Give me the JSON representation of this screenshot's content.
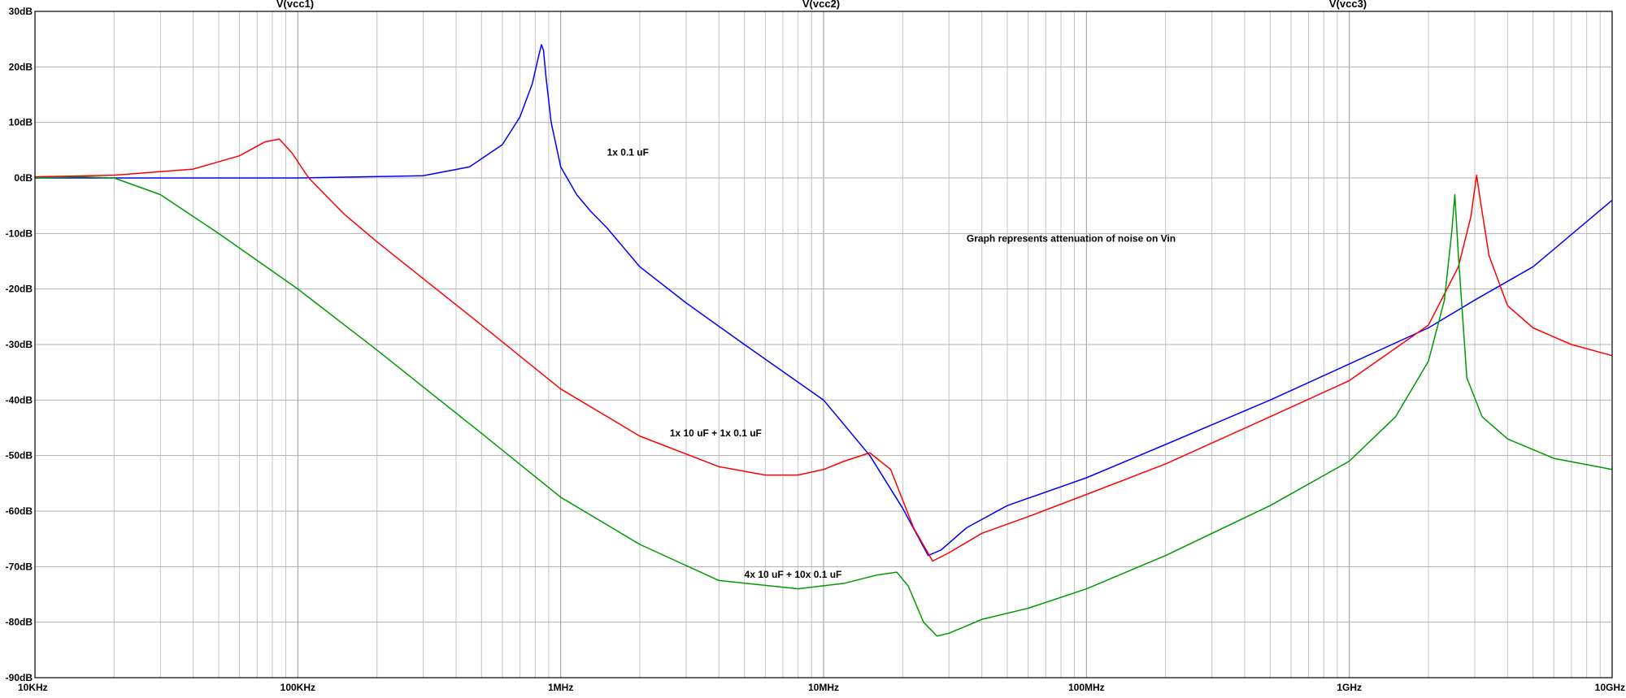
{
  "chart_data": {
    "type": "line",
    "title": "",
    "xlabel": "",
    "ylabel": "",
    "x_scale": "log",
    "xlim_hz": [
      10000,
      10000000000
    ],
    "ylim_db": [
      -90,
      30
    ],
    "grid": true,
    "trace_headers": [
      "V(vcc1)",
      "V(vcc2)",
      "V(vcc3)"
    ],
    "x_ticks": [
      {
        "value": 10000,
        "label": "10KHz"
      },
      {
        "value": 100000,
        "label": "100KHz"
      },
      {
        "value": 1000000,
        "label": "1MHz"
      },
      {
        "value": 10000000,
        "label": "10MHz"
      },
      {
        "value": 100000000,
        "label": "100MHz"
      },
      {
        "value": 1000000000,
        "label": "1GHz"
      },
      {
        "value": 10000000000,
        "label": "10GHz"
      }
    ],
    "y_ticks": [
      {
        "value": 30,
        "label": "30dB"
      },
      {
        "value": 20,
        "label": "20dB"
      },
      {
        "value": 10,
        "label": "10dB"
      },
      {
        "value": 0,
        "label": "0dB"
      },
      {
        "value": -10,
        "label": "-10dB"
      },
      {
        "value": -20,
        "label": "-20dB"
      },
      {
        "value": -30,
        "label": "-30dB"
      },
      {
        "value": -40,
        "label": "-40dB"
      },
      {
        "value": -50,
        "label": "-50dB"
      },
      {
        "value": -60,
        "label": "-60dB"
      },
      {
        "value": -70,
        "label": "-70dB"
      },
      {
        "value": -80,
        "label": "-80dB"
      },
      {
        "value": -90,
        "label": "-90dB"
      }
    ],
    "annotations": [
      {
        "text": "1x 0.1 uF",
        "x": 1500000,
        "y": 4,
        "color": "#000000"
      },
      {
        "text": "1x 10 uF + 1x 0.1 uF",
        "x": 2600000,
        "y": -46.5,
        "color": "#000000"
      },
      {
        "text": "4x 10 uF + 10x 0.1 uF",
        "x": 5000000,
        "y": -72,
        "color": "#000000"
      },
      {
        "text": "Graph represents attenuation of noise on Vin",
        "x": 35000000,
        "y": -11.5,
        "color": "#000000"
      }
    ],
    "series": [
      {
        "color": "#0000ff",
        "points": [
          [
            10000,
            0
          ],
          [
            100000,
            0
          ],
          [
            300000,
            0.4
          ],
          [
            450000,
            2
          ],
          [
            600000,
            6
          ],
          [
            700000,
            11
          ],
          [
            780000,
            17
          ],
          [
            820000,
            21.5
          ],
          [
            845000,
            24
          ],
          [
            860000,
            23
          ],
          [
            880000,
            18
          ],
          [
            920000,
            10
          ],
          [
            1000000,
            2
          ],
          [
            1150000,
            -3
          ],
          [
            1300000,
            -6
          ],
          [
            1500000,
            -9
          ],
          [
            2000000,
            -16
          ],
          [
            3000000,
            -22.5
          ],
          [
            5000000,
            -30
          ],
          [
            10000000,
            -40
          ],
          [
            15000000,
            -50
          ],
          [
            20000000,
            -59.5
          ],
          [
            25000000,
            -68
          ],
          [
            28000000,
            -67
          ],
          [
            35000000,
            -63
          ],
          [
            50000000,
            -59
          ],
          [
            100000000,
            -54
          ],
          [
            200000000,
            -48
          ],
          [
            500000000,
            -40
          ],
          [
            1000000000,
            -33.5
          ],
          [
            2000000000,
            -27
          ],
          [
            3000000000,
            -22
          ],
          [
            5000000000,
            -16
          ],
          [
            10000000000,
            -4
          ]
        ]
      },
      {
        "color": "#ff0000",
        "points": [
          [
            10000,
            0.2
          ],
          [
            20000,
            0.5
          ],
          [
            40000,
            1.6
          ],
          [
            60000,
            4
          ],
          [
            75000,
            6.5
          ],
          [
            85000,
            7
          ],
          [
            95000,
            4.5
          ],
          [
            110000,
            0
          ],
          [
            150000,
            -6.5
          ],
          [
            200000,
            -11.5
          ],
          [
            500000,
            -26.5
          ],
          [
            1000000,
            -38
          ],
          [
            2000000,
            -46.5
          ],
          [
            4000000,
            -52
          ],
          [
            6000000,
            -53.5
          ],
          [
            8000000,
            -53.5
          ],
          [
            10000000,
            -52.5
          ],
          [
            12000000,
            -51
          ],
          [
            15000000,
            -49.5
          ],
          [
            18000000,
            -52.5
          ],
          [
            22000000,
            -63
          ],
          [
            26000000,
            -69
          ],
          [
            30000000,
            -67.5
          ],
          [
            40000000,
            -64
          ],
          [
            60000000,
            -61
          ],
          [
            100000000,
            -57
          ],
          [
            200000000,
            -51.5
          ],
          [
            500000000,
            -43
          ],
          [
            1000000000,
            -36.5
          ],
          [
            2000000000,
            -26.5
          ],
          [
            2600000000,
            -16
          ],
          [
            2900000000,
            -7
          ],
          [
            3050000000,
            0.5
          ],
          [
            3150000000,
            -4
          ],
          [
            3400000000,
            -14
          ],
          [
            4000000000,
            -23
          ],
          [
            5000000000,
            -27
          ],
          [
            7000000000,
            -30
          ],
          [
            10000000000,
            -32
          ]
        ]
      },
      {
        "color": "#009900",
        "points": [
          [
            10000,
            0
          ],
          [
            15000,
            0.2
          ],
          [
            20000,
            0
          ],
          [
            30000,
            -3
          ],
          [
            50000,
            -10
          ],
          [
            100000,
            -20
          ],
          [
            200000,
            -31
          ],
          [
            500000,
            -46
          ],
          [
            1000000,
            -57.5
          ],
          [
            2000000,
            -66
          ],
          [
            4000000,
            -72.5
          ],
          [
            8000000,
            -74
          ],
          [
            12000000,
            -73
          ],
          [
            16000000,
            -71.5
          ],
          [
            19000000,
            -71
          ],
          [
            21000000,
            -73.5
          ],
          [
            24000000,
            -80
          ],
          [
            27000000,
            -82.5
          ],
          [
            30000000,
            -82
          ],
          [
            40000000,
            -79.5
          ],
          [
            60000000,
            -77.5
          ],
          [
            100000000,
            -74
          ],
          [
            200000000,
            -68
          ],
          [
            500000000,
            -59
          ],
          [
            1000000000,
            -51
          ],
          [
            1500000000,
            -43
          ],
          [
            2000000000,
            -33
          ],
          [
            2300000000,
            -22
          ],
          [
            2450000000,
            -10
          ],
          [
            2520000000,
            -3
          ],
          [
            2600000000,
            -14
          ],
          [
            2800000000,
            -36
          ],
          [
            3200000000,
            -43
          ],
          [
            4000000000,
            -47
          ],
          [
            6000000000,
            -50.5
          ],
          [
            10000000000,
            -52.5
          ]
        ]
      }
    ]
  }
}
